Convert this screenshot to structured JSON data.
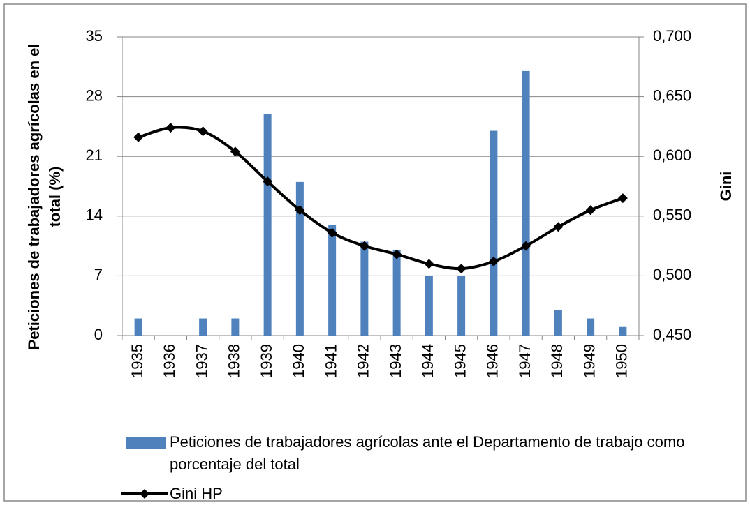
{
  "chart_data": {
    "type": "bar-line",
    "y_label": "Peticiones de trabajadores agrícolas en el total (%)",
    "y2_label": "Gini",
    "categories": [
      "1935",
      "1936",
      "1937",
      "1938",
      "1939",
      "1940",
      "1941",
      "1942",
      "1943",
      "1944",
      "1945",
      "1946",
      "1947",
      "1948",
      "1949",
      "1950"
    ],
    "series": [
      {
        "name": "Peticiones de trabajadores agrícolas ante el Departamento de trabajo como porcentaje del total",
        "type": "bar",
        "color": "#4f81bd",
        "values": [
          2,
          0,
          2,
          2,
          26,
          18,
          13,
          11,
          10,
          7,
          7,
          24,
          31,
          3,
          2,
          1
        ]
      },
      {
        "name": "Gini HP",
        "type": "line",
        "axis": "y2",
        "color": "#000000",
        "values": [
          0.616,
          0.624,
          0.621,
          0.604,
          0.579,
          0.555,
          0.536,
          0.525,
          0.518,
          0.51,
          0.506,
          0.512,
          0.525,
          0.541,
          0.555,
          0.565
        ]
      }
    ],
    "ylim": [
      0,
      35
    ],
    "yticks": [
      0,
      7,
      14,
      21,
      28,
      35
    ],
    "y2lim": [
      0.45,
      0.7
    ],
    "y2ticks": [
      {
        "value": 0.45,
        "label": "0,450"
      },
      {
        "value": 0.5,
        "label": "0,500"
      },
      {
        "value": 0.55,
        "label": "0,550"
      },
      {
        "value": 0.6,
        "label": "0,600"
      },
      {
        "value": 0.65,
        "label": "0,650"
      },
      {
        "value": 0.7,
        "label": "0,700"
      }
    ],
    "grid": true
  }
}
